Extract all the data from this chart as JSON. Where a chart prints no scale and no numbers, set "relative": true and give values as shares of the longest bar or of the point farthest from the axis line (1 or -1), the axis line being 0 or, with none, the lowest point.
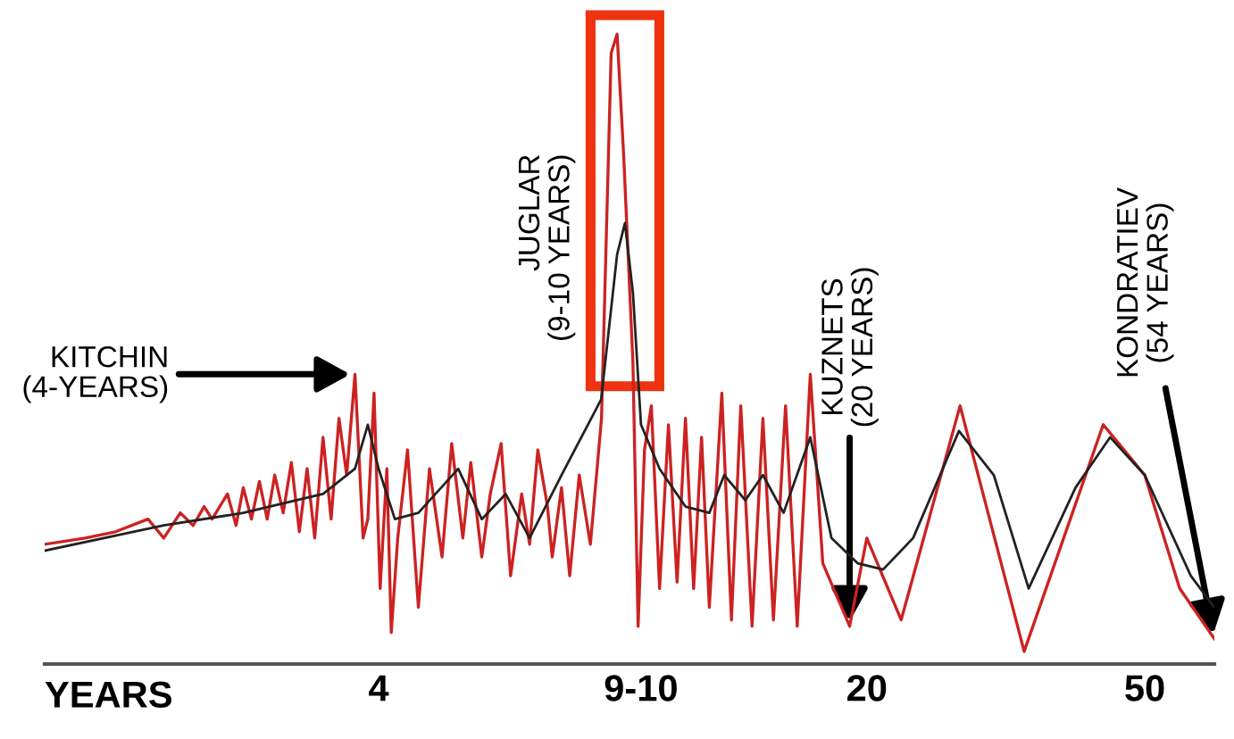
{
  "chart_data": {
    "type": "line",
    "relative": true,
    "xlabel": "YEARS",
    "log": "x",
    "xlim": [
      1.33,
      62.9
    ],
    "xticks": [
      4,
      {
        "value": 9.5,
        "label": "9-10"
      },
      20,
      50
    ],
    "series": [
      {
        "color": "#cc2222",
        "x": [
          1.33,
          1.52,
          1.68,
          1.87,
          1.97,
          2.08,
          2.17,
          2.25,
          2.31,
          2.43,
          2.5,
          2.56,
          2.63,
          2.7,
          2.77,
          2.84,
          2.92,
          3,
          3.08,
          3.16,
          3.24,
          3.33,
          3.42,
          3.51,
          3.6,
          3.7,
          3.8,
          3.86,
          3.94,
          4.02,
          4.11,
          4.17,
          4.26,
          4.4,
          4.56,
          4.73,
          4.93,
          5.09,
          5.28,
          5.42,
          5.62,
          5.78,
          5.99,
          6.18,
          6.41,
          6.58,
          6.76,
          6.98,
          7.09,
          7.31,
          7.51,
          7.75,
          8.04,
          8.34,
          8.61,
          8.78,
          8.97,
          9.25,
          9.41,
          9.61,
          9.83,
          10.1,
          10.4,
          10.7,
          11,
          11.3,
          11.6,
          11.9,
          12.4,
          12.8,
          13.2,
          13.7,
          14.2,
          14.7,
          15.3,
          15.9,
          16.6,
          17.3,
          18.9,
          20,
          22.4,
          27.2,
          33.6,
          43.6,
          50,
          56.1,
          62.9
        ],
        "values": [
          0.19,
          0.2,
          0.21,
          0.23,
          0.2,
          0.24,
          0.22,
          0.25,
          0.23,
          0.27,
          0.22,
          0.28,
          0.23,
          0.29,
          0.23,
          0.3,
          0.24,
          0.32,
          0.21,
          0.31,
          0.2,
          0.36,
          0.23,
          0.39,
          0.3,
          0.46,
          0.2,
          0.23,
          0.43,
          0.12,
          0.31,
          0.05,
          0.2,
          0.34,
          0.09,
          0.31,
          0.17,
          0.35,
          0.2,
          0.32,
          0.17,
          0.27,
          0.35,
          0.14,
          0.27,
          0.19,
          0.34,
          0.25,
          0.17,
          0.28,
          0.14,
          0.3,
          0.19,
          0.39,
          0.97,
          1.0,
          0.81,
          0.48,
          0.06,
          0.34,
          0.41,
          0.12,
          0.38,
          0.13,
          0.39,
          0.12,
          0.36,
          0.09,
          0.43,
          0.07,
          0.41,
          0.06,
          0.39,
          0.07,
          0.41,
          0.06,
          0.46,
          0.16,
          0.06,
          0.2,
          0.07,
          0.41,
          0.02,
          0.38,
          0.3,
          0.12,
          0.04
        ]
      },
      {
        "color": "#222222",
        "x": [
          1.33,
          1.97,
          2.56,
          3.33,
          3.7,
          3.86,
          4,
          4.22,
          4.56,
          5.2,
          5.62,
          6.08,
          6.58,
          7.31,
          8.33,
          8.78,
          9.01,
          9.25,
          9.5,
          10.1,
          11,
          11.9,
          12.5,
          13.4,
          14.2,
          15.2,
          16.6,
          17.8,
          19.4,
          21.1,
          23.3,
          27.1,
          30.4,
          34.1,
          39.8,
          44.6,
          50,
          58.2,
          62.9
        ],
        "values": [
          0.18,
          0.22,
          0.24,
          0.27,
          0.31,
          0.38,
          0.31,
          0.23,
          0.24,
          0.31,
          0.23,
          0.27,
          0.2,
          0.3,
          0.42,
          0.65,
          0.7,
          0.59,
          0.38,
          0.31,
          0.25,
          0.24,
          0.3,
          0.26,
          0.3,
          0.24,
          0.36,
          0.2,
          0.16,
          0.15,
          0.2,
          0.37,
          0.3,
          0.12,
          0.28,
          0.36,
          0.3,
          0.14,
          0.09
        ]
      }
    ],
    "annotations": [
      {
        "text": "KITCHIN\n(4-YEARS)",
        "x": 3.7,
        "y": 0.46
      },
      {
        "text": "JUGLAR\n(9-10 YEARS)",
        "x": 9.01,
        "y": 0.7
      },
      {
        "text": "KUZNETS\n(20 YEARS)",
        "x": 18.9,
        "y": 0.06
      },
      {
        "text": "KONDRATIEV\n(54 YEARS)",
        "x": 62.9,
        "y": 0.04
      }
    ]
  }
}
